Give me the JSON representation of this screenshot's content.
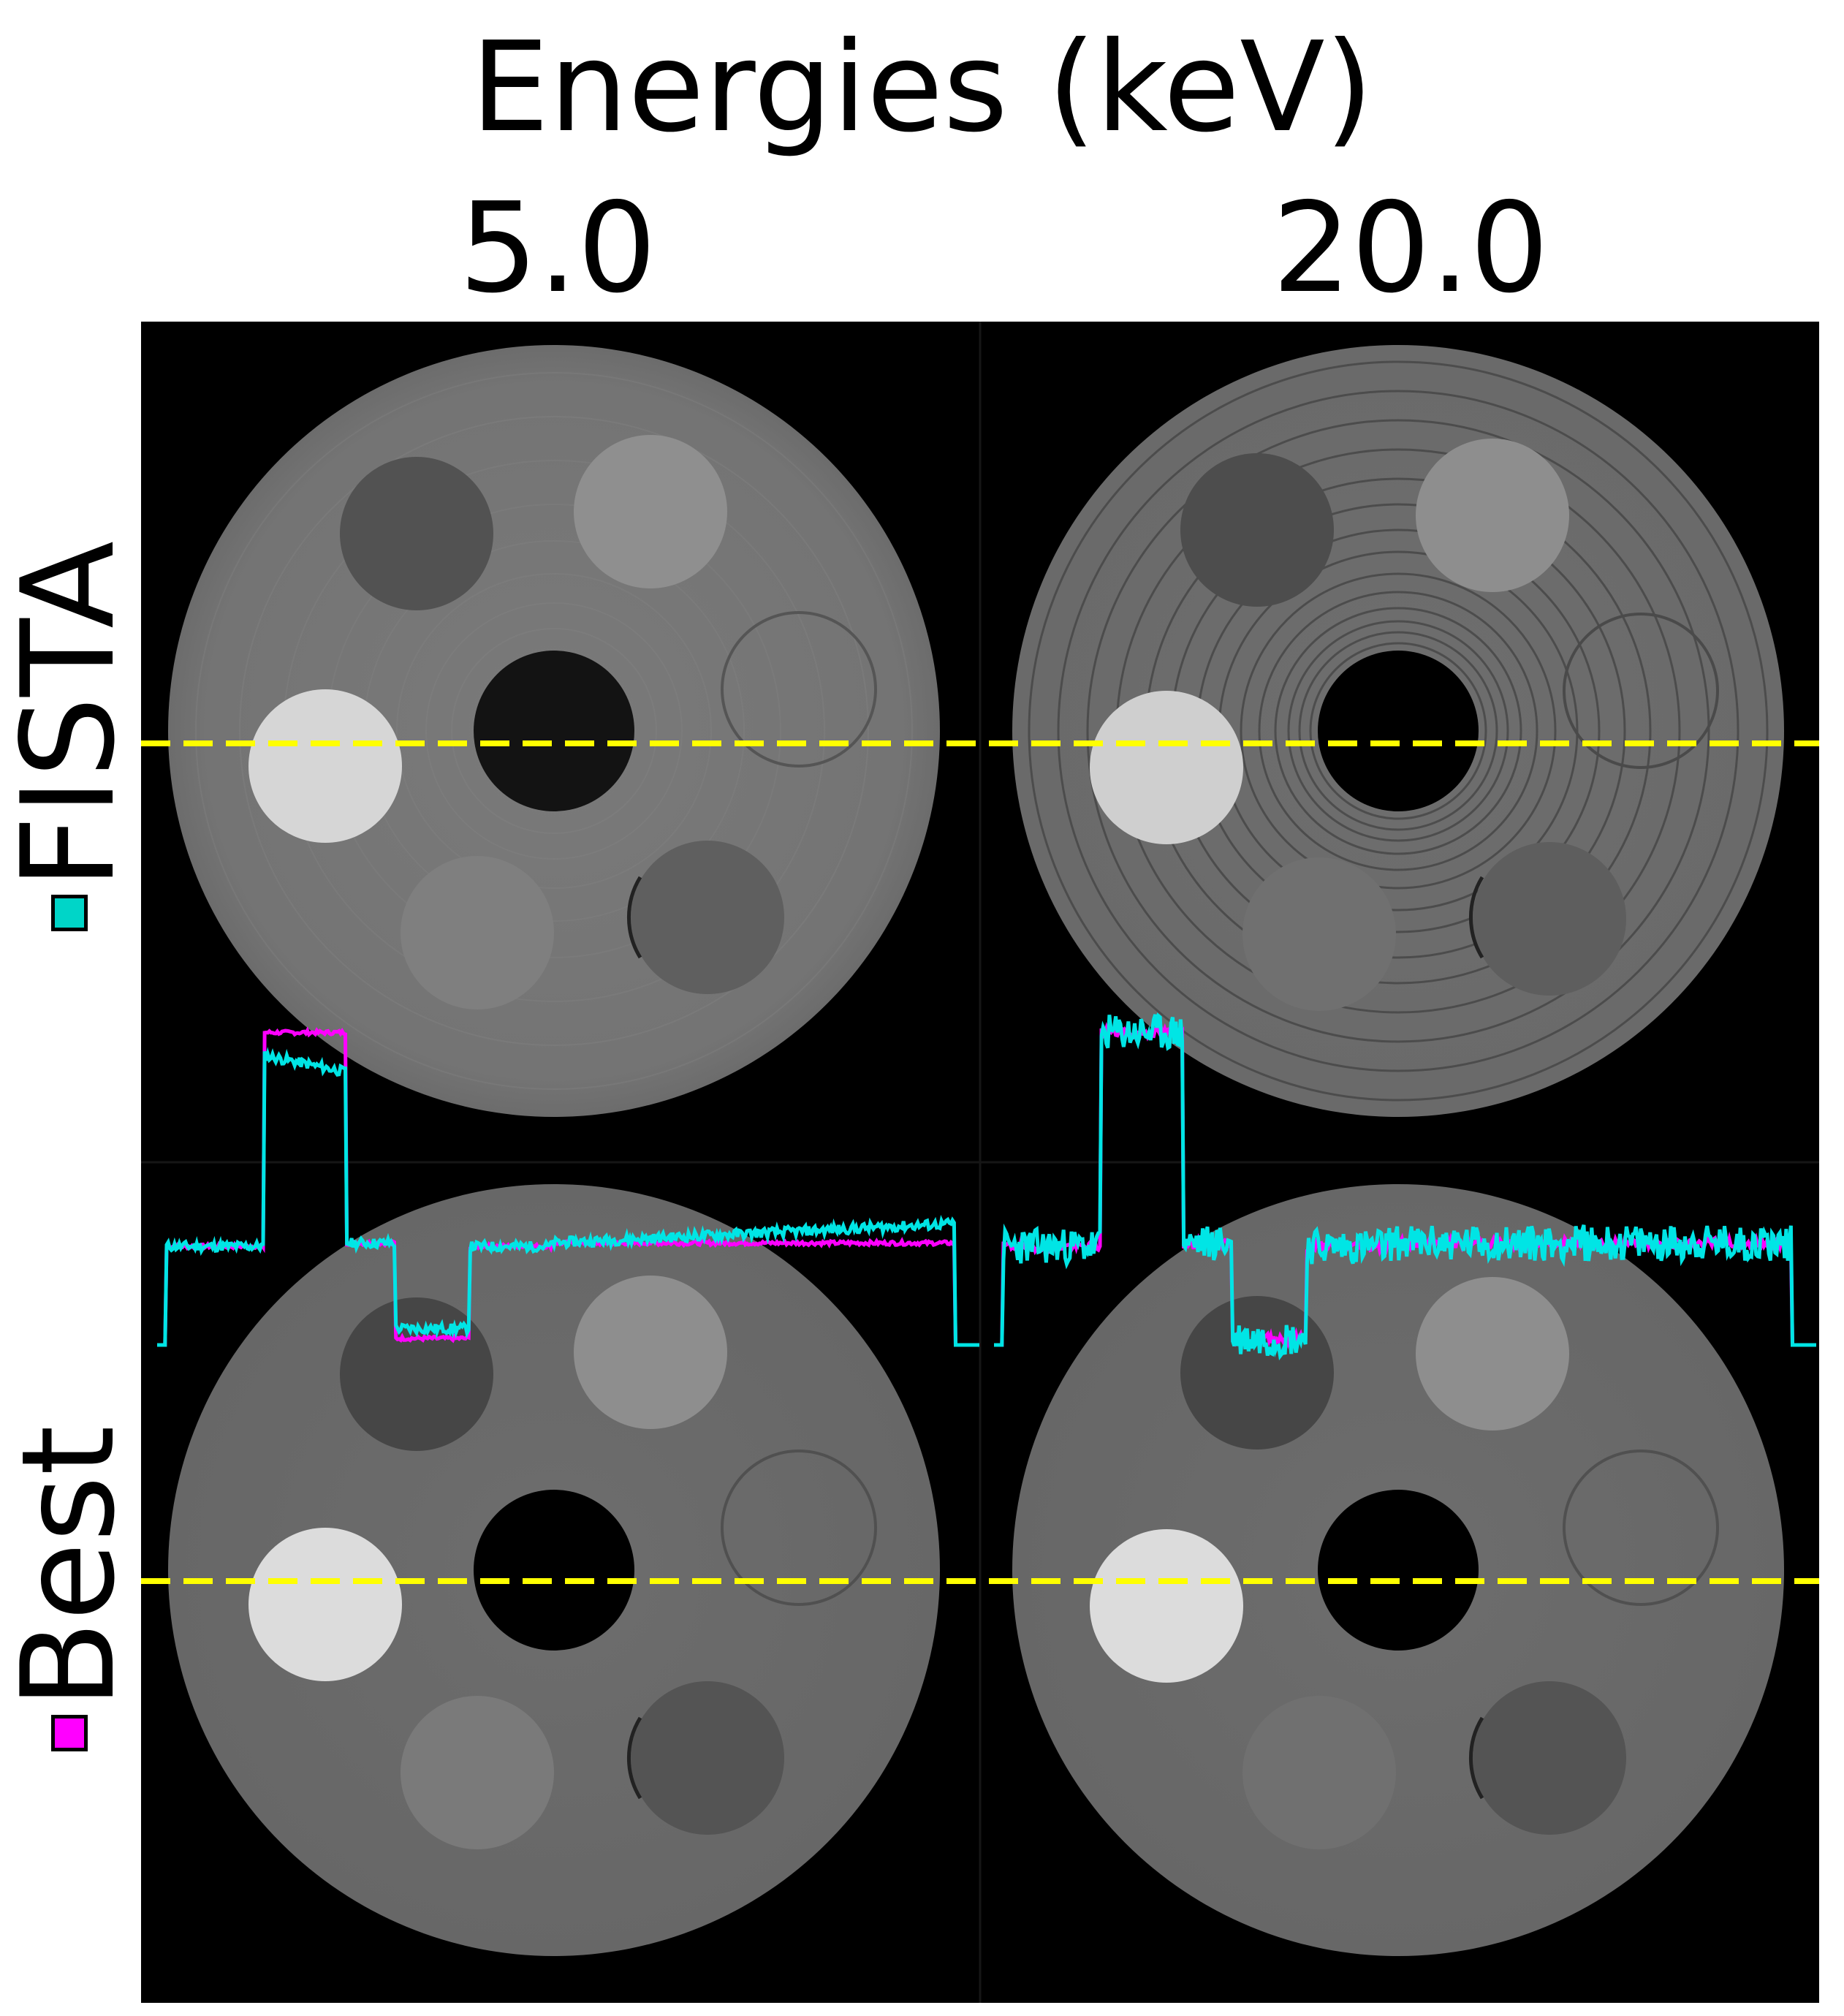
{
  "figure": {
    "title": "Energies (keV)",
    "columns": [
      "5.0",
      "20.0"
    ],
    "rows": [
      {
        "label": "FISTA",
        "swatch_color": "#00d5c8"
      },
      {
        "label": "Best",
        "swatch_color": "#ff00ff"
      }
    ]
  },
  "colors": {
    "fista_profile": "#00e5e5",
    "best_profile": "#ff00ff",
    "profile_line": "#ffff00",
    "background": "#000000"
  }
}
